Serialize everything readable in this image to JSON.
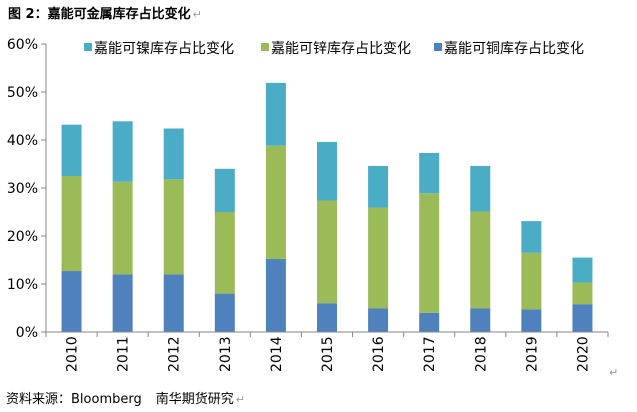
{
  "figure": {
    "title": "图 2：嘉能可金属库存占比变化",
    "source": "资料来源：Bloomberg",
    "publisher": "南华期货研究"
  },
  "chart_data": {
    "type": "bar",
    "stacked": true,
    "categories": [
      "2010",
      "2011",
      "2012",
      "2013",
      "2014",
      "2015",
      "2016",
      "2017",
      "2018",
      "2019",
      "2020"
    ],
    "series": [
      {
        "name": "嘉能可铜库存占比变化",
        "color": "#4f81bd",
        "values": [
          12.7,
          12.0,
          12.0,
          8.0,
          15.2,
          6.0,
          4.9,
          4.0,
          4.9,
          4.7,
          5.8
        ]
      },
      {
        "name": "嘉能可锌库存占比变化",
        "color": "#9bbb59",
        "values": [
          19.8,
          19.3,
          19.8,
          17.0,
          23.6,
          21.4,
          21.0,
          24.9,
          20.2,
          11.8,
          4.5
        ]
      },
      {
        "name": "嘉能可镍库存占比变化",
        "color": "#4bacc6",
        "values": [
          10.7,
          12.6,
          10.6,
          9.0,
          13.1,
          12.2,
          8.7,
          8.4,
          9.5,
          6.6,
          5.2
        ]
      }
    ],
    "legend_order": [
      2,
      1,
      0
    ],
    "legend_position": "top",
    "ylim": [
      0,
      60
    ],
    "yticks": [
      0,
      10,
      20,
      30,
      40,
      50,
      60
    ],
    "ytick_labels": [
      "0%",
      "10%",
      "20%",
      "30%",
      "40%",
      "50%",
      "60%"
    ],
    "grid": false
  }
}
